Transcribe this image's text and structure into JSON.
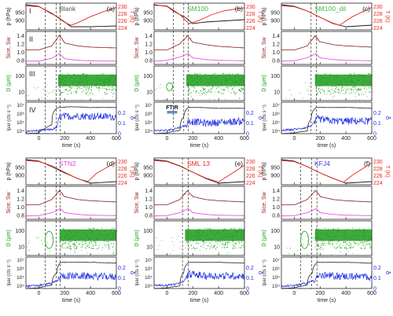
{
  "colors": {
    "pressure": "#1a1a1a",
    "temperature": "#e8281e",
    "sice": "#8b1a1a",
    "sw": "#e040e0",
    "droplets": "#1c9b1c",
    "iwr": "#2a2a2a",
    "depol": "#1b2ee0",
    "dashed": "#333333",
    "title_blank": "#555555",
    "title_sm100": "#3db83d",
    "title_stn2": "#e33ad8",
    "title_sml13": "#e8281e",
    "title_kfj4": "#3b3be0",
    "ftir_bar": "#6a8fc0"
  },
  "axes_text": {
    "p_label": "p (hPa)",
    "t_label": "T (K)",
    "s_label": "Sice, Sw",
    "d_label": "D (µm)",
    "i_label": "Ipar (cts s⁻¹)",
    "delta_label": "δ",
    "x_label": "time (s)",
    "p_ticks": [
      "950",
      "900"
    ],
    "t_ticks": [
      "230",
      "228",
      "226",
      "224"
    ],
    "s_ticks": [
      "1.4",
      "1.2",
      "1.0",
      "0.8"
    ],
    "d_ticks": [
      "100",
      "10"
    ],
    "i_ticks": [
      "10⁷",
      "10⁶",
      "10⁵",
      "10⁴"
    ],
    "delta_ticks": [
      "0.2",
      "0.1",
      "0"
    ],
    "x_ticks": [
      "0",
      "200",
      "400",
      "600"
    ]
  },
  "row_labels": [
    "I",
    "II",
    "III",
    "IV"
  ],
  "ftir_label": "FTIR",
  "panel_titles": [
    "Blank",
    "SM100",
    "SM100_dil",
    "STN2",
    "SML 13",
    "KFJ4"
  ],
  "panel_letters": [
    "(a)",
    "(b)",
    "(c)",
    "(d)",
    "(e)",
    "(f)"
  ],
  "chart_data": [
    {
      "type": "line",
      "panel": "(a)",
      "title": "Blank",
      "xlabel": "time (s)",
      "xlim": [
        -100,
        600
      ],
      "dashed_lines_x": [
        50,
        135,
        165
      ],
      "series": [
        {
          "name": "p (hPa)",
          "x": [
            -100,
            0,
            50,
            150,
            250,
            400,
            600
          ],
          "y": [
            1000,
            990,
            965,
            920,
            860,
            860,
            865
          ]
        },
        {
          "name": "T (K)",
          "x": [
            -100,
            0,
            100,
            200,
            250,
            300,
            400,
            500,
            600
          ],
          "y": [
            230.2,
            230,
            228.2,
            225.6,
            224.8,
            225.5,
            227.2,
            228.6,
            229.8
          ]
        },
        {
          "name": "Sice",
          "x": [
            -100,
            0,
            100,
            160,
            200,
            300,
            400,
            600
          ],
          "y": [
            1.05,
            1.05,
            1.15,
            1.4,
            1.22,
            1.15,
            1.12,
            1.1
          ]
        },
        {
          "name": "Sw",
          "x": [
            -100,
            0,
            100,
            160,
            200,
            300,
            400,
            600
          ],
          "y": [
            0.78,
            0.78,
            0.85,
            0.96,
            0.84,
            0.8,
            0.79,
            0.78
          ]
        },
        {
          "name": "Ipar",
          "x": [
            -100,
            0,
            50,
            100,
            150,
            250,
            400,
            600
          ],
          "y": [
            5000,
            6000,
            20000,
            50000,
            5000000,
            6000000,
            5000000,
            5000000
          ]
        },
        {
          "name": "δ",
          "x": [
            -100,
            0,
            100,
            140,
            160,
            300,
            600
          ],
          "y": [
            0.02,
            0.03,
            0.04,
            0.06,
            0.16,
            0.17,
            0.16
          ]
        }
      ],
      "droplets": {
        "x_start": 150,
        "x_end": 600,
        "d_min": 15,
        "d_max": 150
      }
    },
    {
      "type": "line",
      "panel": "(b)",
      "title": "SM100",
      "xlabel": "time (s)",
      "xlim": [
        -100,
        600
      ],
      "dashed_lines_x": [
        50,
        130,
        165
      ],
      "ftir_bar_x": [
        0,
        80
      ],
      "series": [
        {
          "name": "p (hPa)",
          "x": [
            -100,
            0,
            50,
            150,
            200,
            300,
            600
          ],
          "y": [
            1000,
            990,
            960,
            915,
            880,
            890,
            905
          ]
        },
        {
          "name": "T (K)",
          "x": [
            -100,
            0,
            100,
            170,
            250,
            350,
            450,
            600
          ],
          "y": [
            230.4,
            230.2,
            227.8,
            225.2,
            226.2,
            227.8,
            228.9,
            229.7
          ]
        },
        {
          "name": "Sice",
          "x": [
            -100,
            0,
            100,
            160,
            200,
            300,
            400,
            600
          ],
          "y": [
            1.05,
            1.05,
            1.2,
            1.4,
            1.24,
            1.18,
            1.14,
            1.1
          ]
        },
        {
          "name": "Sw",
          "x": [
            -100,
            0,
            100,
            165,
            200,
            300,
            400,
            600
          ],
          "y": [
            0.78,
            0.8,
            0.88,
            0.96,
            0.86,
            0.82,
            0.8,
            0.79
          ]
        },
        {
          "name": "Ipar",
          "x": [
            -100,
            0,
            100,
            130,
            165,
            250,
            400,
            600
          ],
          "y": [
            5000,
            6000,
            12000,
            400000,
            5000000,
            5000000,
            4000000,
            4000000
          ]
        },
        {
          "name": "δ",
          "x": [
            -100,
            0,
            100,
            150,
            170,
            300,
            600
          ],
          "y": [
            0.03,
            0.03,
            0.06,
            0.08,
            0.12,
            0.1,
            0.12
          ]
        }
      ],
      "droplets": {
        "x_start": 150,
        "x_end": 600,
        "d_min": 15,
        "d_max": 150
      }
    },
    {
      "type": "line",
      "panel": "(c)",
      "title": "SM100_dil",
      "xlabel": "time (s)",
      "xlim": [
        -100,
        600
      ],
      "dashed_lines_x": [
        130,
        170
      ],
      "series": [
        {
          "name": "p (hPa)",
          "x": [
            -100,
            0,
            100,
            200,
            300,
            400,
            600
          ],
          "y": [
            1000,
            990,
            960,
            920,
            880,
            860,
            870
          ]
        },
        {
          "name": "T (K)",
          "x": [
            -100,
            0,
            100,
            200,
            300,
            350,
            450,
            600
          ],
          "y": [
            230.3,
            230,
            228.8,
            227,
            225.4,
            224.8,
            227.2,
            229.8
          ]
        },
        {
          "name": "Sice",
          "x": [
            -100,
            0,
            100,
            160,
            200,
            300,
            400,
            600
          ],
          "y": [
            1.05,
            1.05,
            1.15,
            1.4,
            1.25,
            1.18,
            1.15,
            1.12
          ]
        },
        {
          "name": "Sw",
          "x": [
            -100,
            0,
            100,
            165,
            200,
            300,
            400,
            600
          ],
          "y": [
            0.78,
            0.79,
            0.86,
            0.96,
            0.86,
            0.82,
            0.8,
            0.79
          ]
        },
        {
          "name": "Ipar",
          "x": [
            -100,
            0,
            100,
            130,
            170,
            250,
            400,
            600
          ],
          "y": [
            5000,
            6000,
            10000,
            200000,
            5000000,
            5000000,
            5000000,
            4000000
          ]
        },
        {
          "name": "δ",
          "x": [
            -100,
            0,
            100,
            150,
            180,
            300,
            600
          ],
          "y": [
            0.03,
            0.04,
            0.06,
            0.09,
            0.14,
            0.12,
            0.12
          ]
        }
      ],
      "droplets": {
        "x_start": 160,
        "x_end": 600,
        "d_min": 15,
        "d_max": 150
      }
    },
    {
      "type": "line",
      "panel": "(d)",
      "title": "STN2",
      "xlabel": "time (s)",
      "xlim": [
        -100,
        600
      ],
      "dashed_lines_x": [
        50,
        135,
        165
      ],
      "series": [
        {
          "name": "p (hPa)",
          "x": [
            -100,
            0,
            100,
            200,
            300,
            400,
            600
          ],
          "y": [
            1000,
            990,
            955,
            915,
            880,
            850,
            860
          ]
        },
        {
          "name": "T (K)",
          "x": [
            -100,
            0,
            100,
            200,
            300,
            380,
            450,
            600
          ],
          "y": [
            230.3,
            230,
            228.8,
            227,
            225.2,
            224.4,
            226.8,
            229.8
          ]
        },
        {
          "name": "Sice",
          "x": [
            -100,
            0,
            100,
            160,
            200,
            300,
            400,
            600
          ],
          "y": [
            1.05,
            1.05,
            1.18,
            1.4,
            1.25,
            1.18,
            1.15,
            1.12
          ]
        },
        {
          "name": "Sw",
          "x": [
            -100,
            0,
            100,
            165,
            200,
            300,
            400,
            600
          ],
          "y": [
            0.78,
            0.79,
            0.86,
            0.96,
            0.86,
            0.82,
            0.8,
            0.79
          ]
        },
        {
          "name": "Ipar",
          "x": [
            -100,
            0,
            100,
            140,
            170,
            250,
            400,
            600
          ],
          "y": [
            5000,
            6000,
            12000,
            300000,
            5000000,
            5000000,
            5000000,
            4000000
          ]
        },
        {
          "name": "δ",
          "x": [
            -100,
            0,
            100,
            150,
            180,
            300,
            600
          ],
          "y": [
            0.02,
            0.03,
            0.05,
            0.08,
            0.12,
            0.12,
            0.11
          ]
        }
      ],
      "droplets": {
        "x_start": 160,
        "x_end": 600,
        "d_min": 15,
        "d_max": 150
      }
    },
    {
      "type": "line",
      "panel": "(e)",
      "title": "SML 13",
      "xlabel": "time (s)",
      "xlim": [
        -100,
        600
      ],
      "dashed_lines_x": [
        120,
        165
      ],
      "series": [
        {
          "name": "p (hPa)",
          "x": [
            -100,
            0,
            100,
            200,
            300,
            400,
            600
          ],
          "y": [
            1000,
            990,
            960,
            920,
            880,
            850,
            860
          ]
        },
        {
          "name": "T (K)",
          "x": [
            -100,
            0,
            100,
            200,
            300,
            400,
            500,
            600
          ],
          "y": [
            230.3,
            230,
            228.7,
            227,
            225.4,
            224.3,
            226.6,
            229
          ]
        },
        {
          "name": "Sice",
          "x": [
            -100,
            0,
            100,
            160,
            200,
            300,
            400,
            600
          ],
          "y": [
            1.05,
            1.05,
            1.18,
            1.4,
            1.25,
            1.18,
            1.15,
            1.12
          ]
        },
        {
          "name": "Sw",
          "x": [
            -100,
            0,
            100,
            165,
            200,
            300,
            400,
            600
          ],
          "y": [
            0.78,
            0.79,
            0.86,
            0.96,
            0.86,
            0.82,
            0.8,
            0.79
          ]
        },
        {
          "name": "Ipar",
          "x": [
            -100,
            0,
            100,
            130,
            170,
            250,
            400,
            600
          ],
          "y": [
            5000,
            6000,
            10000,
            300000,
            5000000,
            5000000,
            5000000,
            4000000
          ]
        },
        {
          "name": "δ",
          "x": [
            -100,
            0,
            100,
            140,
            170,
            300,
            600
          ],
          "y": [
            0.03,
            0.03,
            0.05,
            0.08,
            0.14,
            0.12,
            0.12
          ]
        }
      ],
      "droplets": {
        "x_start": 140,
        "x_end": 600,
        "d_min": 15,
        "d_max": 150
      }
    },
    {
      "type": "line",
      "panel": "(f)",
      "title": "KFJ4",
      "xlabel": "time (s)",
      "xlim": [
        -100,
        600
      ],
      "dashed_lines_x": [
        50,
        135,
        175
      ],
      "series": [
        {
          "name": "p (hPa)",
          "x": [
            -100,
            0,
            100,
            200,
            300,
            400,
            600
          ],
          "y": [
            1000,
            990,
            955,
            915,
            880,
            850,
            860
          ]
        },
        {
          "name": "T (K)",
          "x": [
            -100,
            0,
            100,
            200,
            300,
            380,
            450,
            600
          ],
          "y": [
            230.3,
            230,
            228.6,
            226.8,
            225.3,
            224.2,
            226.2,
            229.6
          ]
        },
        {
          "name": "Sice",
          "x": [
            -100,
            0,
            100,
            165,
            200,
            300,
            400,
            600
          ],
          "y": [
            1.05,
            1.05,
            1.18,
            1.4,
            1.25,
            1.18,
            1.15,
            1.12
          ]
        },
        {
          "name": "Sw",
          "x": [
            -100,
            0,
            100,
            170,
            200,
            300,
            400,
            600
          ],
          "y": [
            0.78,
            0.79,
            0.86,
            0.96,
            0.86,
            0.82,
            0.8,
            0.79
          ]
        },
        {
          "name": "Ipar",
          "x": [
            -100,
            0,
            100,
            140,
            180,
            250,
            400,
            600
          ],
          "y": [
            5000,
            6000,
            12000,
            300000,
            5000000,
            5000000,
            5000000,
            4000000
          ]
        },
        {
          "name": "δ",
          "x": [
            -100,
            0,
            100,
            150,
            180,
            300,
            600
          ],
          "y": [
            0.02,
            0.03,
            0.05,
            0.08,
            0.12,
            0.12,
            0.11
          ]
        }
      ],
      "droplets": {
        "x_start": 160,
        "x_end": 600,
        "d_min": 15,
        "d_max": 150
      }
    }
  ]
}
